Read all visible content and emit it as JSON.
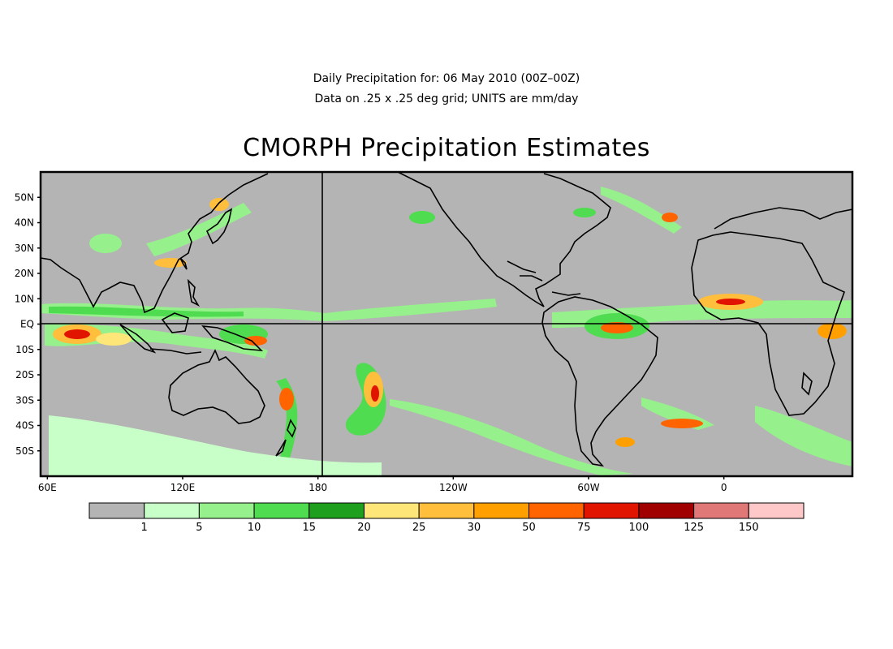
{
  "header": {
    "line1": "Daily Precipitation for: 06 May 2010 (00Z–00Z)",
    "line2": "Data on .25 x .25 deg grid; UNITS are mm/day",
    "title": "CMORPH Precipitation Estimates"
  },
  "map": {
    "lon_range": [
      57,
      417
    ],
    "lat_range": [
      -60,
      60
    ],
    "background_color": "#b4b4b4",
    "lat_labels": [
      {
        "lat": 50,
        "text": "50N"
      },
      {
        "lat": 40,
        "text": "40N"
      },
      {
        "lat": 30,
        "text": "30N"
      },
      {
        "lat": 20,
        "text": "20N"
      },
      {
        "lat": 10,
        "text": "10N"
      },
      {
        "lat": 0,
        "text": "EQ"
      },
      {
        "lat": -10,
        "text": "10S"
      },
      {
        "lat": -20,
        "text": "20S"
      },
      {
        "lat": -30,
        "text": "30S"
      },
      {
        "lat": -40,
        "text": "40S"
      },
      {
        "lat": -50,
        "text": "50S"
      }
    ],
    "lon_labels": [
      {
        "lon": 60,
        "text": "60E"
      },
      {
        "lon": 120,
        "text": "120E"
      },
      {
        "lon": 180,
        "text": "180"
      },
      {
        "lon": 240,
        "text": "120W"
      },
      {
        "lon": 300,
        "text": "60W"
      },
      {
        "lon": 360,
        "text": "0"
      }
    ]
  },
  "colorbar": {
    "labels": [
      "1",
      "5",
      "10",
      "15",
      "20",
      "25",
      "30",
      "50",
      "75",
      "100",
      "125",
      "150"
    ],
    "colors": [
      "#b4b4b4",
      "#c8ffc8",
      "#96f08c",
      "#50dc50",
      "#1ea01e",
      "#ffe678",
      "#ffbe3c",
      "#ffa000",
      "#ff6400",
      "#e11400",
      "#a00000",
      "#e17878",
      "#ffc8c8"
    ]
  }
}
